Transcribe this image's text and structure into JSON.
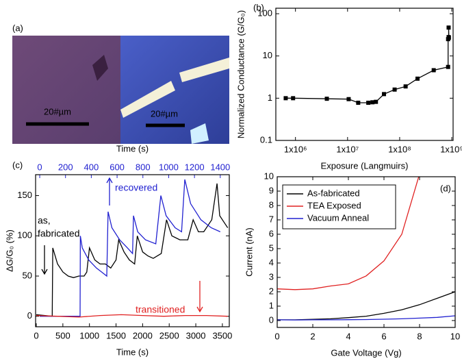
{
  "panel_a": {
    "label": "(a)",
    "scale_bar_left": "20#µm",
    "scale_bar_right": "20#µm"
  },
  "chart_data": [
    {
      "type": "line",
      "panel_label": "(b)",
      "xlabel": "Exposure (Langmuirs)",
      "ylabel": "Normalized Conductance (G/G₀)",
      "xlog": true,
      "ylog": true,
      "xlim": [
        420000,
        1060000000
      ],
      "ylim": [
        0.1,
        135
      ],
      "xticks": [
        {
          "value": 1000000,
          "label": "1x10⁶"
        },
        {
          "value": 10000000,
          "label": "1x10⁷"
        },
        {
          "value": 100000000,
          "label": "1x10⁸"
        },
        {
          "value": 1000000000,
          "label": "1x10⁹"
        }
      ],
      "yticks": [
        0.1,
        1,
        10,
        100
      ],
      "x": [
        650000,
        900000,
        4000000,
        10500000,
        16000000,
        25000000,
        30000000,
        35000000,
        50000000,
        80000000,
        130000000,
        220000000,
        450000000,
        850000000,
        850000000,
        870000000,
        870000000,
        880000000
      ],
      "series": [
        {
          "color": "#000000",
          "marker": "square",
          "values": [
            1.0,
            1.0,
            0.97,
            0.95,
            0.78,
            0.78,
            0.8,
            0.82,
            1.25,
            1.6,
            1.9,
            2.9,
            4.6,
            5.5,
            25,
            28,
            47,
            27
          ]
        }
      ]
    },
    {
      "type": "line",
      "panel_label": "(c)",
      "xlabel": "Time (s)",
      "x2label": "Time (s)",
      "ylabel": "ΔG/G₀ (%)",
      "xlim": [
        -13,
        3630
      ],
      "x2lim": [
        -32,
        1470
      ],
      "ylim": [
        -13,
        176
      ],
      "xticks": [
        0,
        500,
        1000,
        1500,
        2000,
        2500,
        3000,
        3500
      ],
      "x2ticks": [
        0,
        200,
        400,
        600,
        800,
        1000,
        1200,
        1400
      ],
      "x2color": "#2020d0",
      "yticks": [
        0,
        50,
        100,
        150
      ],
      "series": [
        {
          "color": "#000000",
          "x": [
            0,
            300,
            310,
            400,
            500,
            600,
            700,
            800,
            900,
            950,
            1000,
            1100,
            1200,
            1300,
            1400,
            1500,
            1550,
            1650,
            1750,
            1850,
            1900,
            2000,
            2100,
            2200,
            2350,
            2450,
            2550,
            2700,
            2850,
            2950,
            3050,
            3150,
            3300,
            3400,
            3450,
            3550,
            3600
          ],
          "values": [
            2,
            0,
            85,
            65,
            55,
            50,
            48,
            50,
            50,
            55,
            85,
            70,
            65,
            65,
            60,
            70,
            95,
            80,
            70,
            65,
            100,
            80,
            75,
            72,
            78,
            120,
            100,
            95,
            95,
            120,
            105,
            105,
            120,
            165,
            125,
            115,
            110
          ]
        },
        {
          "color": "#2020d0",
          "axis": "x2",
          "x": [
            0,
            313,
            315,
            330,
            380,
            440,
            480,
            520,
            530,
            560,
            620,
            680,
            720,
            727,
            760,
            820,
            900,
            939,
            980,
            1050,
            1100,
            1125,
            1170,
            1250,
            1330,
            1400
          ],
          "values": [
            0,
            0,
            100,
            85,
            70,
            60,
            55,
            50,
            130,
            110,
            95,
            85,
            78,
            125,
            105,
            95,
            90,
            150,
            125,
            110,
            105,
            170,
            140,
            120,
            110,
            105
          ]
        },
        {
          "color": "#e02020",
          "x": [
            0,
            400,
            800,
            1200,
            1600,
            2000,
            2400,
            2800,
            3200,
            3600
          ],
          "values": [
            1,
            0,
            -1,
            1,
            2,
            1,
            0,
            1,
            1,
            0
          ]
        }
      ],
      "annotations": [
        "as,",
        "fabricated",
        "recovered",
        "transitioned"
      ]
    },
    {
      "type": "line",
      "panel_label": "(d)",
      "xlabel": "Gate Voltage (Vg)",
      "ylabel": "Current (nA)",
      "xlim": [
        0,
        10
      ],
      "ylim": [
        -0.48,
        10
      ],
      "xticks": [
        0,
        2,
        4,
        6,
        8,
        10
      ],
      "yticks": [
        0,
        1,
        2,
        3,
        4,
        5,
        6,
        7,
        8,
        9,
        10
      ],
      "x": [
        0,
        1,
        2,
        3,
        4,
        5,
        6,
        7,
        8,
        9,
        10
      ],
      "legend": "upper left",
      "series": [
        {
          "name": "As-fabricated",
          "color": "#000000",
          "values": [
            0.05,
            0.05,
            0.08,
            0.12,
            0.2,
            0.3,
            0.5,
            0.75,
            1.1,
            1.55,
            2.0
          ]
        },
        {
          "name": "TEA Exposed",
          "color": "#e02020",
          "values": [
            2.2,
            2.15,
            2.2,
            2.4,
            2.55,
            3.1,
            4.15,
            6.0,
            10.2,
            null,
            null
          ]
        },
        {
          "name": "Vacuum Anneal",
          "color": "#2020d0",
          "values": [
            0.05,
            0.04,
            0.05,
            0.05,
            0.06,
            0.07,
            0.09,
            0.12,
            0.17,
            0.22,
            0.33
          ]
        }
      ]
    }
  ]
}
